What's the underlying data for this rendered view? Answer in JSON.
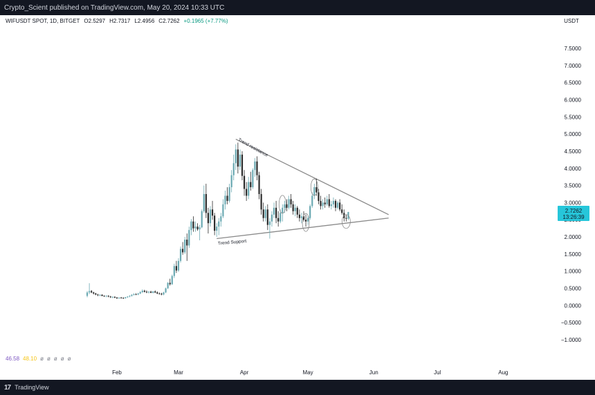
{
  "header": {
    "published_text": "Crypto_Scient published on TradingView.com, May 20, 2024 10:33 UTC"
  },
  "symbol": {
    "name": "WIFUSDT SPOT, 1D, BITGET",
    "open": "O2.5297",
    "high": "H2.7317",
    "low": "L2.4956",
    "close": "C2.7262",
    "change": "+0.1965 (+7.77%)"
  },
  "price_tag": {
    "price": "2.7262",
    "countdown": "13:26:39"
  },
  "indicator": {
    "value1": "46.58",
    "value2": "48.10",
    "icons": [
      "eye-off-icon",
      "eye-off-icon",
      "eye-off-icon",
      "eye-off-icon",
      "eye-off-icon"
    ]
  },
  "footer": {
    "brand": "TradingView"
  },
  "colors": {
    "up": "#6aa9b2",
    "down": "#2b2b2b",
    "trendline": "#8a8a8a",
    "price_tag": "#26c6da"
  },
  "chart_data": {
    "type": "candlestick",
    "currency": "USDT",
    "x_ticks": [
      "Feb",
      "Mar",
      "Apr",
      "May",
      "Jun",
      "Jul",
      "Aug"
    ],
    "y_ticks": [
      "7.5000",
      "7.0000",
      "6.5000",
      "6.0000",
      "5.5000",
      "5.0000",
      "4.5000",
      "4.0000",
      "3.5000",
      "3.0000",
      "2.5000",
      "2.0000",
      "1.5000",
      "1.0000",
      "0.5000",
      "0.0000",
      "−0.5000",
      "−1.0000"
    ],
    "ylim": [
      -1.25,
      7.95
    ],
    "annotations": [
      {
        "text": "Trend resistance",
        "from": [
          "2024-03-28",
          4.85
        ],
        "to": [
          "2024-06-08",
          2.65
        ]
      },
      {
        "text": "Trend Support",
        "from": [
          "2024-03-19",
          1.95
        ],
        "to": [
          "2024-06-08",
          2.55
        ]
      }
    ],
    "candles": [
      {
        "d": "2024-01-18",
        "o": 0.28,
        "h": 0.42,
        "l": 0.24,
        "c": 0.38
      },
      {
        "d": "2024-01-19",
        "o": 0.38,
        "h": 0.65,
        "l": 0.33,
        "c": 0.42
      },
      {
        "d": "2024-01-20",
        "o": 0.42,
        "h": 0.45,
        "l": 0.36,
        "c": 0.38
      },
      {
        "d": "2024-01-21",
        "o": 0.38,
        "h": 0.4,
        "l": 0.32,
        "c": 0.35
      },
      {
        "d": "2024-01-22",
        "o": 0.35,
        "h": 0.37,
        "l": 0.3,
        "c": 0.32
      },
      {
        "d": "2024-01-23",
        "o": 0.32,
        "h": 0.34,
        "l": 0.27,
        "c": 0.3
      },
      {
        "d": "2024-01-24",
        "o": 0.3,
        "h": 0.33,
        "l": 0.27,
        "c": 0.31
      },
      {
        "d": "2024-01-25",
        "o": 0.31,
        "h": 0.33,
        "l": 0.27,
        "c": 0.28
      },
      {
        "d": "2024-01-26",
        "o": 0.28,
        "h": 0.3,
        "l": 0.25,
        "c": 0.27
      },
      {
        "d": "2024-01-27",
        "o": 0.27,
        "h": 0.3,
        "l": 0.24,
        "c": 0.28
      },
      {
        "d": "2024-01-28",
        "o": 0.28,
        "h": 0.3,
        "l": 0.24,
        "c": 0.26
      },
      {
        "d": "2024-01-29",
        "o": 0.26,
        "h": 0.28,
        "l": 0.22,
        "c": 0.24
      },
      {
        "d": "2024-01-30",
        "o": 0.24,
        "h": 0.27,
        "l": 0.21,
        "c": 0.25
      },
      {
        "d": "2024-01-31",
        "o": 0.25,
        "h": 0.27,
        "l": 0.21,
        "c": 0.23
      },
      {
        "d": "2024-02-01",
        "o": 0.23,
        "h": 0.25,
        "l": 0.19,
        "c": 0.21
      },
      {
        "d": "2024-02-02",
        "o": 0.21,
        "h": 0.24,
        "l": 0.19,
        "c": 0.23
      },
      {
        "d": "2024-02-03",
        "o": 0.23,
        "h": 0.25,
        "l": 0.2,
        "c": 0.22
      },
      {
        "d": "2024-02-04",
        "o": 0.22,
        "h": 0.24,
        "l": 0.19,
        "c": 0.21
      },
      {
        "d": "2024-02-05",
        "o": 0.21,
        "h": 0.25,
        "l": 0.2,
        "c": 0.24
      },
      {
        "d": "2024-02-06",
        "o": 0.24,
        "h": 0.27,
        "l": 0.22,
        "c": 0.26
      },
      {
        "d": "2024-02-07",
        "o": 0.26,
        "h": 0.3,
        "l": 0.24,
        "c": 0.28
      },
      {
        "d": "2024-02-08",
        "o": 0.28,
        "h": 0.33,
        "l": 0.26,
        "c": 0.31
      },
      {
        "d": "2024-02-09",
        "o": 0.31,
        "h": 0.36,
        "l": 0.29,
        "c": 0.33
      },
      {
        "d": "2024-02-10",
        "o": 0.33,
        "h": 0.36,
        "l": 0.3,
        "c": 0.32
      },
      {
        "d": "2024-02-11",
        "o": 0.32,
        "h": 0.37,
        "l": 0.3,
        "c": 0.35
      },
      {
        "d": "2024-02-12",
        "o": 0.35,
        "h": 0.42,
        "l": 0.33,
        "c": 0.39
      },
      {
        "d": "2024-02-13",
        "o": 0.39,
        "h": 0.47,
        "l": 0.36,
        "c": 0.43
      },
      {
        "d": "2024-02-14",
        "o": 0.43,
        "h": 0.46,
        "l": 0.38,
        "c": 0.4
      },
      {
        "d": "2024-02-15",
        "o": 0.4,
        "h": 0.44,
        "l": 0.36,
        "c": 0.38
      },
      {
        "d": "2024-02-16",
        "o": 0.38,
        "h": 0.42,
        "l": 0.35,
        "c": 0.4
      },
      {
        "d": "2024-02-17",
        "o": 0.4,
        "h": 0.43,
        "l": 0.36,
        "c": 0.37
      },
      {
        "d": "2024-02-18",
        "o": 0.37,
        "h": 0.42,
        "l": 0.35,
        "c": 0.41
      },
      {
        "d": "2024-02-19",
        "o": 0.41,
        "h": 0.44,
        "l": 0.36,
        "c": 0.38
      },
      {
        "d": "2024-02-20",
        "o": 0.38,
        "h": 0.41,
        "l": 0.33,
        "c": 0.35
      },
      {
        "d": "2024-02-21",
        "o": 0.35,
        "h": 0.38,
        "l": 0.32,
        "c": 0.34
      },
      {
        "d": "2024-02-22",
        "o": 0.34,
        "h": 0.37,
        "l": 0.3,
        "c": 0.32
      },
      {
        "d": "2024-02-23",
        "o": 0.32,
        "h": 0.4,
        "l": 0.3,
        "c": 0.38
      },
      {
        "d": "2024-02-24",
        "o": 0.38,
        "h": 0.52,
        "l": 0.36,
        "c": 0.5
      },
      {
        "d": "2024-02-25",
        "o": 0.5,
        "h": 0.68,
        "l": 0.48,
        "c": 0.66
      },
      {
        "d": "2024-02-26",
        "o": 0.66,
        "h": 0.78,
        "l": 0.58,
        "c": 0.62
      },
      {
        "d": "2024-02-27",
        "o": 0.62,
        "h": 0.9,
        "l": 0.6,
        "c": 0.86
      },
      {
        "d": "2024-02-28",
        "o": 0.86,
        "h": 1.22,
        "l": 0.8,
        "c": 1.15
      },
      {
        "d": "2024-02-29",
        "o": 1.15,
        "h": 1.3,
        "l": 0.95,
        "c": 1.02
      },
      {
        "d": "2024-03-01",
        "o": 1.02,
        "h": 1.38,
        "l": 0.98,
        "c": 1.3
      },
      {
        "d": "2024-03-02",
        "o": 1.3,
        "h": 1.72,
        "l": 1.25,
        "c": 1.65
      },
      {
        "d": "2024-03-03",
        "o": 1.65,
        "h": 1.85,
        "l": 1.48,
        "c": 1.55
      },
      {
        "d": "2024-03-04",
        "o": 1.55,
        "h": 2.0,
        "l": 1.5,
        "c": 1.92
      },
      {
        "d": "2024-03-05",
        "o": 1.92,
        "h": 2.1,
        "l": 1.3,
        "c": 1.75
      },
      {
        "d": "2024-03-06",
        "o": 1.75,
        "h": 2.3,
        "l": 1.68,
        "c": 2.2
      },
      {
        "d": "2024-03-07",
        "o": 2.2,
        "h": 2.52,
        "l": 2.05,
        "c": 2.45
      },
      {
        "d": "2024-03-08",
        "o": 2.45,
        "h": 2.6,
        "l": 2.15,
        "c": 2.25
      },
      {
        "d": "2024-03-09",
        "o": 2.25,
        "h": 2.45,
        "l": 2.15,
        "c": 2.3
      },
      {
        "d": "2024-03-10",
        "o": 2.3,
        "h": 2.4,
        "l": 2.18,
        "c": 2.22
      },
      {
        "d": "2024-03-11",
        "o": 2.22,
        "h": 2.35,
        "l": 1.9,
        "c": 2.28
      },
      {
        "d": "2024-03-12",
        "o": 2.28,
        "h": 2.8,
        "l": 2.25,
        "c": 2.75
      },
      {
        "d": "2024-03-13",
        "o": 2.75,
        "h": 3.5,
        "l": 2.7,
        "c": 3.25
      },
      {
        "d": "2024-03-14",
        "o": 3.25,
        "h": 3.55,
        "l": 2.55,
        "c": 2.7
      },
      {
        "d": "2024-03-15",
        "o": 2.7,
        "h": 2.85,
        "l": 2.1,
        "c": 2.4
      },
      {
        "d": "2024-03-16",
        "o": 2.4,
        "h": 2.9,
        "l": 2.3,
        "c": 2.8
      },
      {
        "d": "2024-03-17",
        "o": 2.8,
        "h": 3.05,
        "l": 2.5,
        "c": 2.62
      },
      {
        "d": "2024-03-18",
        "o": 2.62,
        "h": 2.7,
        "l": 2.05,
        "c": 2.18
      },
      {
        "d": "2024-03-19",
        "o": 2.18,
        "h": 2.4,
        "l": 2.0,
        "c": 2.3
      },
      {
        "d": "2024-03-20",
        "o": 2.3,
        "h": 2.55,
        "l": 2.05,
        "c": 2.45
      },
      {
        "d": "2024-03-21",
        "o": 2.45,
        "h": 2.7,
        "l": 2.3,
        "c": 2.6
      },
      {
        "d": "2024-03-22",
        "o": 2.6,
        "h": 3.1,
        "l": 2.55,
        "c": 2.95
      },
      {
        "d": "2024-03-23",
        "o": 2.95,
        "h": 3.35,
        "l": 2.8,
        "c": 3.2
      },
      {
        "d": "2024-03-24",
        "o": 3.2,
        "h": 3.45,
        "l": 2.95,
        "c": 3.05
      },
      {
        "d": "2024-03-25",
        "o": 3.05,
        "h": 3.55,
        "l": 3.0,
        "c": 3.45
      },
      {
        "d": "2024-03-26",
        "o": 3.45,
        "h": 3.95,
        "l": 3.3,
        "c": 3.8
      },
      {
        "d": "2024-03-27",
        "o": 3.8,
        "h": 4.4,
        "l": 3.65,
        "c": 4.15
      },
      {
        "d": "2024-03-28",
        "o": 4.15,
        "h": 4.7,
        "l": 3.95,
        "c": 4.55
      },
      {
        "d": "2024-03-29",
        "o": 4.55,
        "h": 4.75,
        "l": 3.85,
        "c": 4.05
      },
      {
        "d": "2024-03-30",
        "o": 4.05,
        "h": 4.55,
        "l": 3.95,
        "c": 4.4
      },
      {
        "d": "2024-03-31",
        "o": 4.4,
        "h": 4.5,
        "l": 3.65,
        "c": 3.78
      },
      {
        "d": "2024-04-01",
        "o": 3.78,
        "h": 3.95,
        "l": 3.2,
        "c": 3.4
      },
      {
        "d": "2024-04-02",
        "o": 3.4,
        "h": 3.6,
        "l": 3.05,
        "c": 3.2
      },
      {
        "d": "2024-04-03",
        "o": 3.2,
        "h": 3.75,
        "l": 3.1,
        "c": 3.6
      },
      {
        "d": "2024-04-04",
        "o": 3.6,
        "h": 3.9,
        "l": 3.35,
        "c": 3.45
      },
      {
        "d": "2024-04-05",
        "o": 3.45,
        "h": 4.0,
        "l": 3.4,
        "c": 3.95
      },
      {
        "d": "2024-04-06",
        "o": 3.95,
        "h": 4.3,
        "l": 3.75,
        "c": 4.2
      },
      {
        "d": "2024-04-07",
        "o": 4.2,
        "h": 4.35,
        "l": 3.65,
        "c": 3.8
      },
      {
        "d": "2024-04-08",
        "o": 3.8,
        "h": 3.9,
        "l": 3.1,
        "c": 3.25
      },
      {
        "d": "2024-04-09",
        "o": 3.25,
        "h": 3.4,
        "l": 2.65,
        "c": 2.8
      },
      {
        "d": "2024-04-10",
        "o": 2.8,
        "h": 3.0,
        "l": 2.45,
        "c": 2.55
      },
      {
        "d": "2024-04-11",
        "o": 2.55,
        "h": 2.9,
        "l": 2.45,
        "c": 2.8
      },
      {
        "d": "2024-04-12",
        "o": 2.8,
        "h": 2.95,
        "l": 2.2,
        "c": 2.35
      },
      {
        "d": "2024-04-13",
        "o": 2.35,
        "h": 2.55,
        "l": 1.95,
        "c": 2.45
      },
      {
        "d": "2024-04-14",
        "o": 2.45,
        "h": 2.75,
        "l": 2.3,
        "c": 2.65
      },
      {
        "d": "2024-04-15",
        "o": 2.65,
        "h": 3.0,
        "l": 2.55,
        "c": 2.85
      },
      {
        "d": "2024-04-16",
        "o": 2.85,
        "h": 3.05,
        "l": 2.4,
        "c": 2.55
      },
      {
        "d": "2024-04-17",
        "o": 2.55,
        "h": 2.75,
        "l": 2.3,
        "c": 2.45
      },
      {
        "d": "2024-04-18",
        "o": 2.45,
        "h": 2.8,
        "l": 2.4,
        "c": 2.7
      },
      {
        "d": "2024-04-19",
        "o": 2.7,
        "h": 2.95,
        "l": 2.45,
        "c": 2.85
      },
      {
        "d": "2024-04-20",
        "o": 2.85,
        "h": 3.05,
        "l": 2.7,
        "c": 2.95
      },
      {
        "d": "2024-04-21",
        "o": 2.95,
        "h": 3.1,
        "l": 2.75,
        "c": 2.85
      },
      {
        "d": "2024-04-22",
        "o": 2.85,
        "h": 3.2,
        "l": 2.8,
        "c": 3.1
      },
      {
        "d": "2024-04-23",
        "o": 3.1,
        "h": 3.25,
        "l": 2.85,
        "c": 2.95
      },
      {
        "d": "2024-04-24",
        "o": 2.95,
        "h": 3.05,
        "l": 2.65,
        "c": 2.75
      },
      {
        "d": "2024-04-25",
        "o": 2.75,
        "h": 2.95,
        "l": 2.6,
        "c": 2.85
      },
      {
        "d": "2024-04-26",
        "o": 2.85,
        "h": 2.9,
        "l": 2.55,
        "c": 2.65
      },
      {
        "d": "2024-04-27",
        "o": 2.65,
        "h": 2.8,
        "l": 2.45,
        "c": 2.55
      },
      {
        "d": "2024-04-28",
        "o": 2.55,
        "h": 2.7,
        "l": 2.4,
        "c": 2.6
      },
      {
        "d": "2024-04-29",
        "o": 2.6,
        "h": 2.75,
        "l": 2.45,
        "c": 2.5
      },
      {
        "d": "2024-04-30",
        "o": 2.5,
        "h": 2.65,
        "l": 2.3,
        "c": 2.45
      },
      {
        "d": "2024-05-01",
        "o": 2.45,
        "h": 2.6,
        "l": 2.35,
        "c": 2.55
      },
      {
        "d": "2024-05-02",
        "o": 2.55,
        "h": 2.95,
        "l": 2.5,
        "c": 2.9
      },
      {
        "d": "2024-05-03",
        "o": 2.9,
        "h": 3.3,
        "l": 2.85,
        "c": 3.2
      },
      {
        "d": "2024-05-04",
        "o": 3.2,
        "h": 3.55,
        "l": 3.1,
        "c": 3.45
      },
      {
        "d": "2024-05-05",
        "o": 3.45,
        "h": 3.7,
        "l": 3.2,
        "c": 3.3
      },
      {
        "d": "2024-05-06",
        "o": 3.3,
        "h": 3.4,
        "l": 2.95,
        "c": 3.05
      },
      {
        "d": "2024-05-07",
        "o": 3.05,
        "h": 3.2,
        "l": 2.8,
        "c": 2.9
      },
      {
        "d": "2024-05-08",
        "o": 2.9,
        "h": 3.1,
        "l": 2.8,
        "c": 3.0
      },
      {
        "d": "2024-05-09",
        "o": 3.0,
        "h": 3.15,
        "l": 2.85,
        "c": 2.95
      },
      {
        "d": "2024-05-10",
        "o": 2.95,
        "h": 3.2,
        "l": 2.9,
        "c": 3.1
      },
      {
        "d": "2024-05-11",
        "o": 3.1,
        "h": 3.25,
        "l": 2.85,
        "c": 2.9
      },
      {
        "d": "2024-05-12",
        "o": 2.9,
        "h": 3.05,
        "l": 2.8,
        "c": 2.95
      },
      {
        "d": "2024-05-13",
        "o": 2.95,
        "h": 3.15,
        "l": 2.85,
        "c": 3.05
      },
      {
        "d": "2024-05-14",
        "o": 3.05,
        "h": 3.1,
        "l": 2.75,
        "c": 2.85
      },
      {
        "d": "2024-05-15",
        "o": 2.85,
        "h": 3.05,
        "l": 2.8,
        "c": 3.0
      },
      {
        "d": "2024-05-16",
        "o": 3.0,
        "h": 3.1,
        "l": 2.75,
        "c": 2.8
      },
      {
        "d": "2024-05-17",
        "o": 2.8,
        "h": 2.95,
        "l": 2.65,
        "c": 2.7
      },
      {
        "d": "2024-05-18",
        "o": 2.7,
        "h": 2.8,
        "l": 2.45,
        "c": 2.55
      },
      {
        "d": "2024-05-19",
        "o": 2.55,
        "h": 2.65,
        "l": 2.45,
        "c": 2.53
      },
      {
        "d": "2024-05-20",
        "o": 2.5297,
        "h": 2.7317,
        "l": 2.4956,
        "c": 2.7262
      }
    ]
  }
}
